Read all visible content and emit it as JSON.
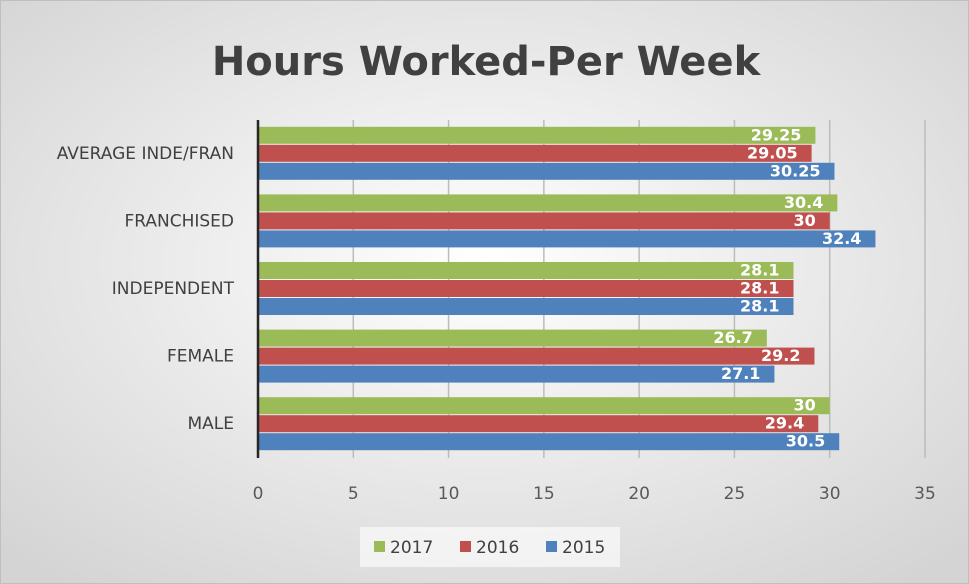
{
  "chart_data": {
    "type": "bar",
    "orientation": "horizontal",
    "title": "Hours Worked-Per Week",
    "categories": [
      "AVERAGE INDE/FRAN",
      "FRANCHISED",
      "INDEPENDENT",
      "FEMALE",
      "MALE"
    ],
    "series": [
      {
        "name": "2017",
        "color": "#9bbb59",
        "values": [
          29.25,
          30.4,
          28.1,
          26.7,
          30
        ]
      },
      {
        "name": "2016",
        "color": "#c0504d",
        "values": [
          29.05,
          30,
          28.1,
          29.2,
          29.4
        ]
      },
      {
        "name": "2015",
        "color": "#4f81bd",
        "values": [
          30.25,
          32.4,
          28.1,
          27.1,
          30.5
        ]
      }
    ],
    "xlim": [
      0,
      35
    ],
    "xticks": [
      0,
      5,
      10,
      15,
      20,
      25,
      30,
      35
    ],
    "grid": true,
    "legend": "bottom"
  }
}
